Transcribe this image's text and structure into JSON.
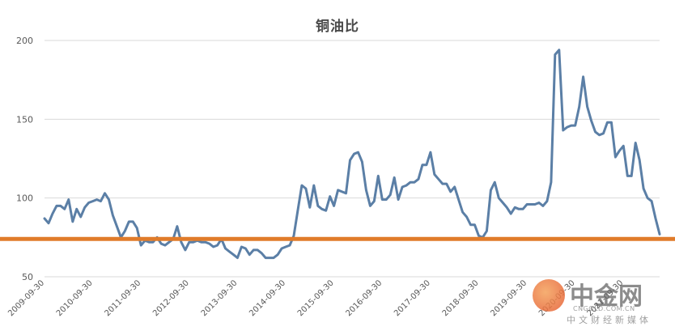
{
  "chart_data": {
    "type": "line",
    "title": "铜油比",
    "xlabel": "",
    "ylabel": "",
    "ylim": [
      50,
      200
    ],
    "yticks": [
      50,
      100,
      150,
      200
    ],
    "grid": true,
    "legend": "none",
    "xtick_labels": [
      "2009-09-30",
      "2010-09-30",
      "2011-09-30",
      "2012-09-30",
      "2013-09-30",
      "2014-09-30",
      "2015-09-30",
      "2016-09-30",
      "2017-09-30",
      "2018-09-30",
      "2019-09-30",
      "2020-09-30",
      "2021-09-30"
    ],
    "x_start": "2009-09",
    "x_step": "month",
    "series": [
      {
        "color": "#5b7fa6",
        "values": [
          87,
          84,
          90,
          95,
          95,
          93,
          99,
          85,
          93,
          88,
          94,
          97,
          98,
          99,
          98,
          103,
          99,
          89,
          82,
          75,
          79,
          85,
          85,
          81,
          70,
          73,
          72,
          72,
          75,
          71,
          70,
          72,
          74,
          82,
          72,
          67,
          72,
          72,
          73,
          72,
          72,
          71,
          69,
          70,
          74,
          68,
          66,
          64,
          62,
          69,
          68,
          64,
          67,
          67,
          65,
          62,
          62,
          62,
          64,
          68,
          69,
          70,
          76,
          92,
          108,
          106,
          94,
          108,
          95,
          93,
          92,
          101,
          95,
          105,
          104,
          103,
          124,
          128,
          129,
          123,
          105,
          95,
          98,
          114,
          99,
          99,
          102,
          113,
          99,
          107,
          108,
          110,
          110,
          112,
          121,
          121,
          129,
          115,
          112,
          109,
          109,
          104,
          107,
          99,
          91,
          88,
          83,
          83,
          76,
          75,
          79,
          105,
          110,
          100,
          97,
          94,
          90,
          94,
          93,
          93,
          96,
          96,
          96,
          97,
          95,
          98,
          110,
          191,
          194,
          143,
          145,
          146,
          146,
          158,
          177,
          158,
          149,
          142,
          140,
          141,
          148,
          148,
          126,
          130,
          133,
          114,
          114,
          135,
          124,
          106,
          100,
          98,
          87,
          77
        ],
        "value_unit": "ratio"
      }
    ],
    "reference_lines": [
      {
        "y": 74,
        "color": "#e07b2a"
      }
    ]
  },
  "watermark": {
    "name": "中金网",
    "url": "CNGOLD.COM.CN",
    "subtitle": "中文财经新媒体"
  }
}
